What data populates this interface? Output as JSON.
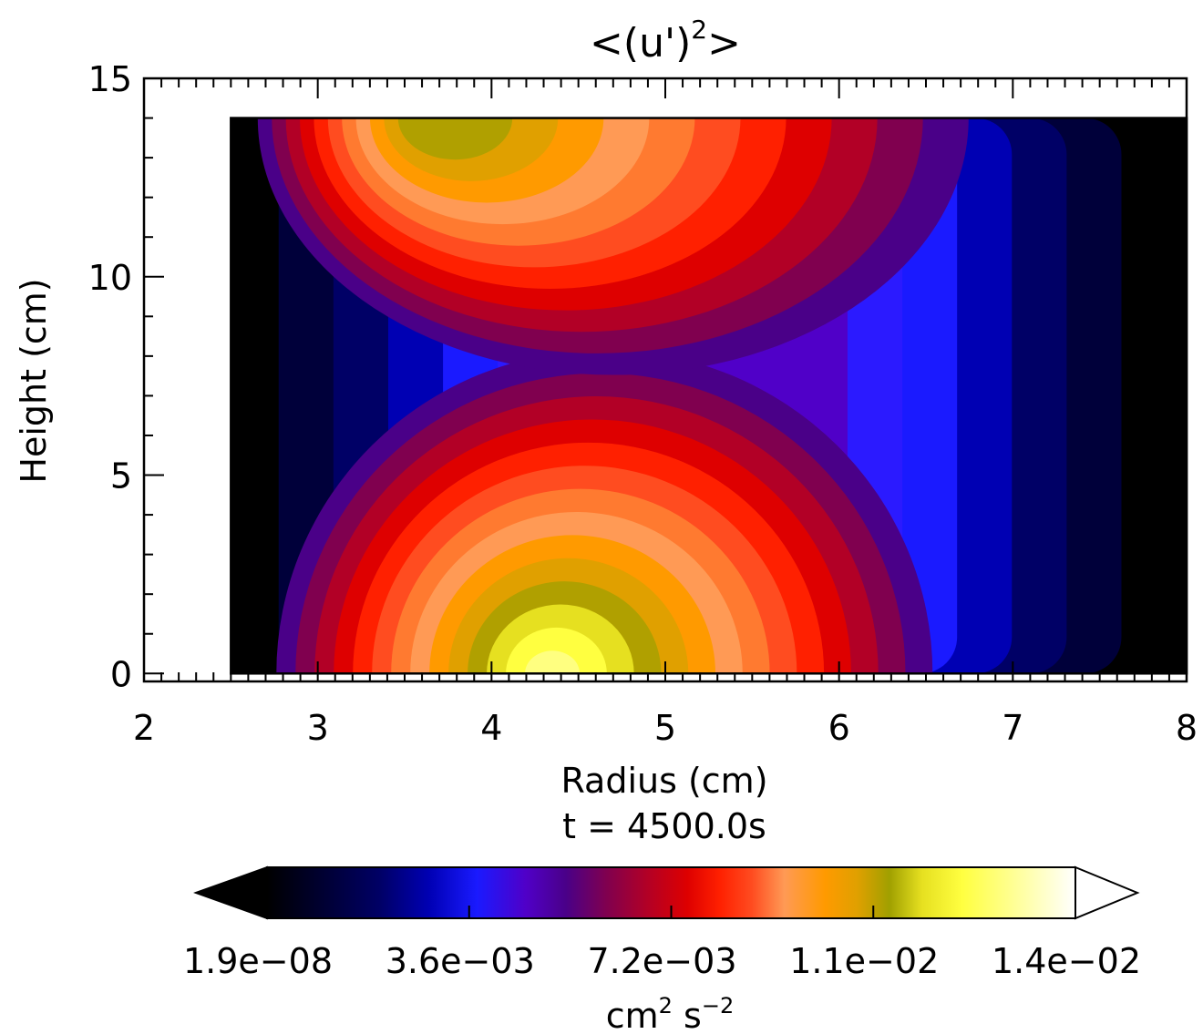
{
  "chart_data": {
    "type": "heatmap",
    "title": "<(u')^2>",
    "title_base": "<(u')",
    "title_sup": "2",
    "title_end": ">",
    "xlabel": "Radius (cm)",
    "ylabel": "Height (cm)",
    "time_label": "t =   4500.0s",
    "xlim": [
      2,
      8
    ],
    "ylim": [
      -0.2,
      15
    ],
    "x_ticks": [
      "2",
      "3",
      "4",
      "5",
      "6",
      "7",
      "8"
    ],
    "y_ticks": [
      "0",
      "5",
      "10",
      "15"
    ],
    "domain": {
      "r_inner": 2.5,
      "r_outer": 8.0,
      "z_bottom": 0,
      "z_top": 14.0
    },
    "colorbar": {
      "min": 1.9e-08,
      "max": 0.014,
      "tick_labels": [
        "1.9e−08",
        "3.6e−03",
        "7.2e−03",
        "1.1e−02",
        "1.4e−02"
      ],
      "unit_main": "cm",
      "unit_sup1": "2",
      "unit_mid": " s",
      "unit_sup2": "−2",
      "extend": "both"
    },
    "colormap": [
      "#000000",
      "#00003a",
      "#000066",
      "#0000b3",
      "#1a1aff",
      "#2b1aff",
      "#5000c8",
      "#4a0088",
      "#80004f",
      "#b20026",
      "#de0000",
      "#ff2000",
      "#ff4c20",
      "#ff7a30",
      "#ff9a55",
      "#ff9a00",
      "#e0a000",
      "#b0a000",
      "#e6e020",
      "#ffff40",
      "#ffff80",
      "#ffffe0"
    ],
    "field_description_values": {
      "lower_peak": {
        "r": 4.3,
        "z": 0.5,
        "value": 0.0125
      },
      "upper_peak": {
        "r": 3.6,
        "z": 13.3,
        "value": 0.0105
      },
      "outer_wall_value": 1.9e-08
    }
  }
}
